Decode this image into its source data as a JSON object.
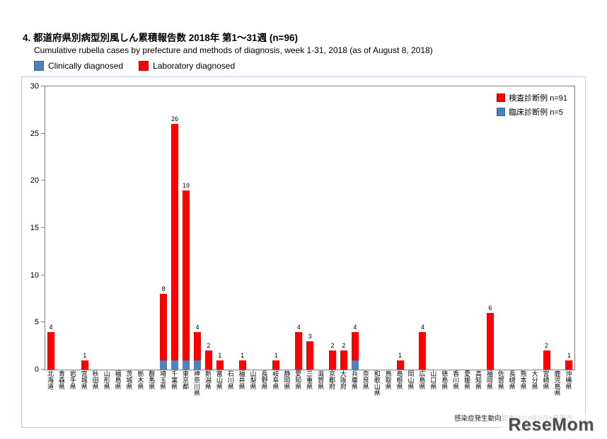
{
  "page": {
    "title": "4. 都道府県別病型別風しん累積報告数  2018年 第1～31週 (n=96)",
    "subtitle": "Cumulative rubella cases by prefecture and methods of diagnosis, week 1-31, 2018 (as of August 8, 2018)",
    "legend": {
      "clinical_label": "Clinically diagnosed",
      "laboratory_label": "Laboratory diagnosed"
    },
    "inner_legend": {
      "laboratory": "検査診断例 n=91",
      "clinical": "臨床診断例 n=5"
    },
    "source_note": "感染症発生動向調査 2018年8月8日現在…",
    "watermark": "ReseMom"
  },
  "colors": {
    "laboratory": "#ff0000",
    "clinical": "#4f81bd"
  },
  "chart_data": {
    "type": "bar",
    "stacked": true,
    "title": "都道府県別病型別風しん累積報告数 2018年 第1～31週 (n=96)",
    "subtitle": "Cumulative rubella cases by prefecture and methods of diagnosis, week 1-31, 2018 (as of August 8, 2018)",
    "xlabel": "",
    "ylabel": "",
    "ylim": [
      0,
      30
    ],
    "yticks": [
      0,
      5,
      10,
      15,
      20,
      25,
      30
    ],
    "grid": false,
    "legend_position": "top-right-inside",
    "categories": [
      "北海道",
      "青森県",
      "岩手県",
      "宮城県",
      "秋田県",
      "山形県",
      "福島県",
      "茨城県",
      "栃木県",
      "群馬県",
      "埼玉県",
      "千葉県",
      "東京都",
      "神奈川県",
      "新潟県",
      "富山県",
      "石川県",
      "福井県",
      "山梨県",
      "長野県",
      "岐阜県",
      "静岡県",
      "愛知県",
      "三重県",
      "滋賀県",
      "京都府",
      "大阪府",
      "兵庫県",
      "奈良県",
      "和歌山県",
      "鳥取県",
      "島根県",
      "岡山県",
      "広島県",
      "山口県",
      "徳島県",
      "香川県",
      "愛媛県",
      "高知県",
      "福岡県",
      "佐賀県",
      "長崎県",
      "熊本県",
      "大分県",
      "宮崎県",
      "鹿児島県",
      "沖縄県"
    ],
    "series": [
      {
        "name": "臨床診断例 (Clinically diagnosed) n=5",
        "color": "#4f81bd",
        "values": [
          0,
          0,
          0,
          0,
          0,
          0,
          0,
          0,
          0,
          0,
          1,
          1,
          1,
          1,
          0,
          0,
          0,
          0,
          0,
          0,
          0,
          0,
          0,
          0,
          0,
          0,
          0,
          1,
          0,
          0,
          0,
          0,
          0,
          0,
          0,
          0,
          0,
          0,
          0,
          0,
          0,
          0,
          0,
          0,
          0,
          0,
          0
        ]
      },
      {
        "name": "検査診断例 (Laboratory diagnosed) n=91",
        "color": "#ff0000",
        "values": [
          4,
          0,
          0,
          1,
          0,
          0,
          0,
          0,
          0,
          0,
          7,
          25,
          18,
          3,
          2,
          1,
          0,
          1,
          0,
          0,
          1,
          0,
          4,
          3,
          0,
          2,
          2,
          3,
          0,
          0,
          0,
          1,
          0,
          4,
          0,
          0,
          0,
          0,
          0,
          6,
          0,
          0,
          0,
          0,
          2,
          0,
          1
        ]
      }
    ],
    "totals": [
      4,
      0,
      0,
      1,
      0,
      0,
      0,
      0,
      0,
      0,
      8,
      26,
      19,
      4,
      2,
      1,
      0,
      1,
      0,
      0,
      1,
      0,
      4,
      3,
      0,
      2,
      2,
      4,
      0,
      0,
      0,
      1,
      0,
      4,
      0,
      0,
      0,
      0,
      0,
      6,
      0,
      0,
      0,
      0,
      2,
      0,
      1
    ]
  }
}
